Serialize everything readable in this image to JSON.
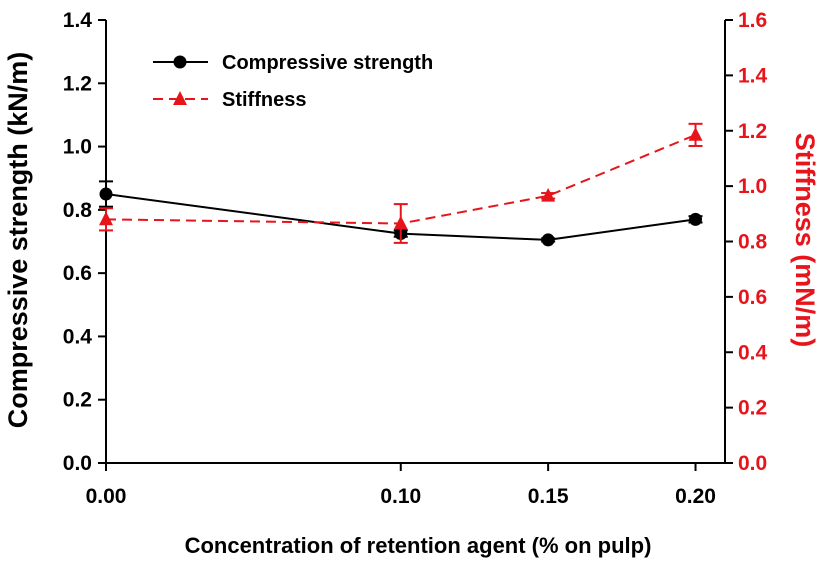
{
  "chart_data": {
    "type": "line",
    "xlabel": "Concentration of retention agent (% on pulp)",
    "ylabel_left": "Compressive strength (kN/m)",
    "ylabel_right": "Stiffness (mN/m)",
    "xlim": [
      0,
      0.21
    ],
    "ylim_left": [
      0,
      1.4
    ],
    "ylim_right": [
      0,
      1.6
    ],
    "x_ticks": [
      "0.00",
      "0.10",
      "0.15",
      "0.20"
    ],
    "x_tick_values": [
      0,
      0.1,
      0.15,
      0.2
    ],
    "y_left_ticks": [
      "0.0",
      "0.2",
      "0.4",
      "0.6",
      "0.8",
      "1.0",
      "1.2",
      "1.4"
    ],
    "y_left_tick_values": [
      0,
      0.2,
      0.4,
      0.6,
      0.8,
      1.0,
      1.2,
      1.4
    ],
    "y_right_ticks": [
      "0.0",
      "0.2",
      "0.4",
      "0.6",
      "0.8",
      "1.0",
      "1.2",
      "1.4",
      "1.6"
    ],
    "y_right_tick_values": [
      0,
      0.2,
      0.4,
      0.6,
      0.8,
      1.0,
      1.2,
      1.4,
      1.6
    ],
    "legend_position": "top-left",
    "grid": false,
    "series": [
      {
        "name": "Compressive strength",
        "axis": "left",
        "color": "#000000",
        "marker": "circle",
        "line_style": "solid",
        "x": [
          0,
          0.1,
          0.15,
          0.2
        ],
        "values": [
          0.85,
          0.725,
          0.705,
          0.77
        ],
        "errors": [
          0.04,
          0.01,
          0.005,
          0.01
        ]
      },
      {
        "name": "Stiffness",
        "axis": "right",
        "color": "#e8141b",
        "marker": "triangle",
        "line_style": "dashed",
        "x": [
          0,
          0.1,
          0.15,
          0.2
        ],
        "values": [
          0.88,
          0.865,
          0.965,
          1.185
        ],
        "errors": [
          0.04,
          0.07,
          0.01,
          0.04
        ]
      }
    ]
  }
}
